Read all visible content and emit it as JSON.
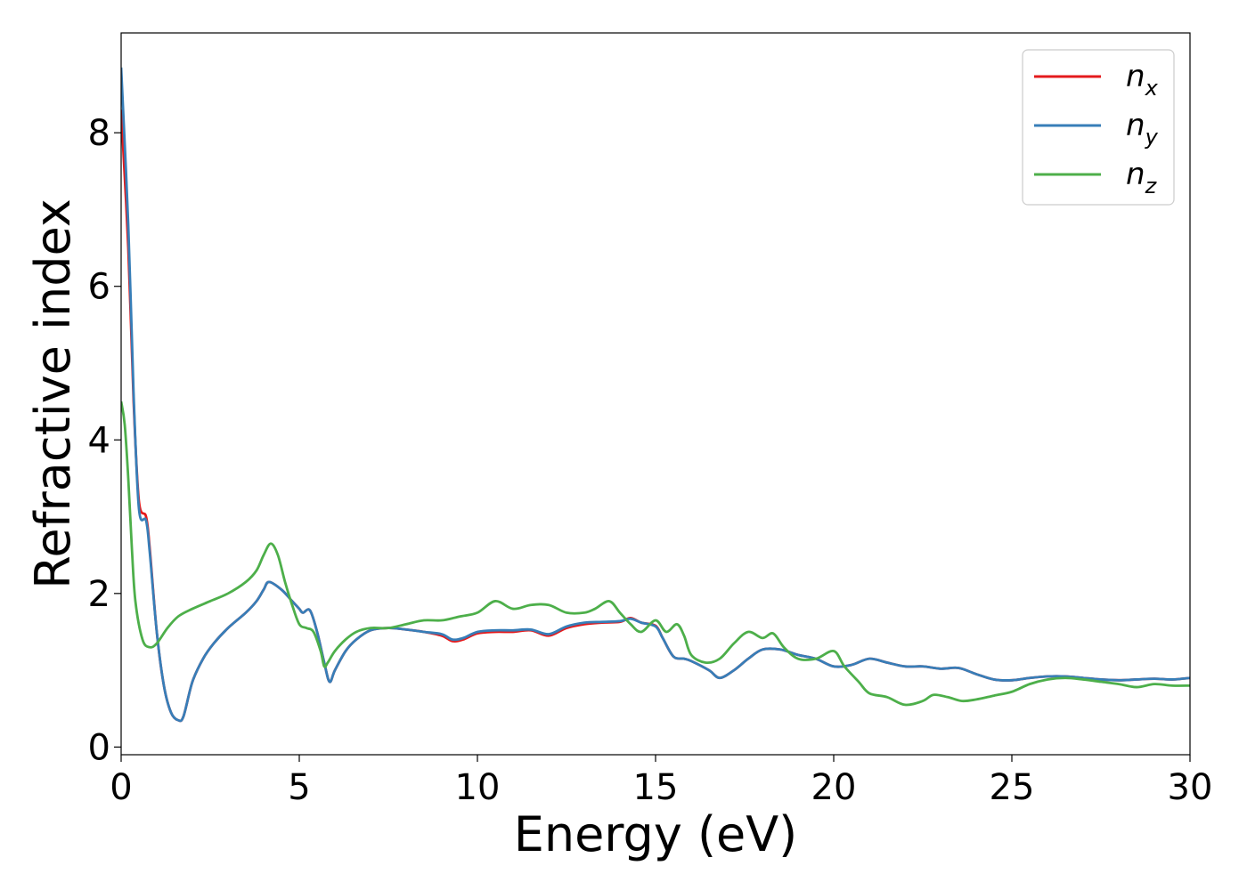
{
  "chart_data": {
    "type": "line",
    "title": "",
    "xlabel": "Energy (eV)",
    "ylabel": "Refractive index",
    "xlim": [
      0,
      30
    ],
    "ylim": [
      -0.1,
      9.3
    ],
    "xticks": [
      0,
      5,
      10,
      15,
      20,
      25,
      30
    ],
    "yticks": [
      0,
      2,
      4,
      6,
      8
    ],
    "grid": false,
    "legend_position": "top-right",
    "series": [
      {
        "name": "n",
        "subscript": "x",
        "color": "#e41a1c",
        "points": [
          [
            0,
            8.3
          ],
          [
            0.2,
            6.5
          ],
          [
            0.35,
            4.5
          ],
          [
            0.5,
            3.2
          ],
          [
            0.7,
            3.0
          ],
          [
            0.8,
            2.6
          ],
          [
            1.0,
            1.5
          ],
          [
            1.2,
            0.8
          ],
          [
            1.4,
            0.45
          ],
          [
            1.6,
            0.35
          ],
          [
            1.75,
            0.4
          ],
          [
            2.0,
            0.85
          ],
          [
            2.3,
            1.15
          ],
          [
            2.6,
            1.35
          ],
          [
            3.0,
            1.55
          ],
          [
            3.5,
            1.75
          ],
          [
            3.8,
            1.9
          ],
          [
            4.0,
            2.05
          ],
          [
            4.15,
            2.15
          ],
          [
            4.5,
            2.05
          ],
          [
            4.8,
            1.9
          ],
          [
            5.0,
            1.8
          ],
          [
            5.1,
            1.75
          ],
          [
            5.3,
            1.78
          ],
          [
            5.5,
            1.5
          ],
          [
            5.7,
            1.1
          ],
          [
            5.85,
            0.85
          ],
          [
            6.0,
            1.0
          ],
          [
            6.3,
            1.25
          ],
          [
            6.6,
            1.4
          ],
          [
            7.0,
            1.52
          ],
          [
            7.5,
            1.55
          ],
          [
            8.0,
            1.53
          ],
          [
            8.5,
            1.5
          ],
          [
            9.0,
            1.45
          ],
          [
            9.3,
            1.38
          ],
          [
            9.6,
            1.4
          ],
          [
            10.0,
            1.48
          ],
          [
            10.5,
            1.5
          ],
          [
            11.0,
            1.5
          ],
          [
            11.5,
            1.52
          ],
          [
            12.0,
            1.45
          ],
          [
            12.5,
            1.55
          ],
          [
            13.0,
            1.6
          ],
          [
            13.5,
            1.62
          ],
          [
            14.0,
            1.63
          ],
          [
            14.3,
            1.68
          ],
          [
            14.6,
            1.62
          ],
          [
            15.0,
            1.58
          ],
          [
            15.2,
            1.42
          ],
          [
            15.5,
            1.18
          ],
          [
            15.8,
            1.15
          ],
          [
            16.0,
            1.12
          ],
          [
            16.5,
            1.0
          ],
          [
            16.8,
            0.9
          ],
          [
            17.2,
            1.0
          ],
          [
            17.6,
            1.15
          ],
          [
            18.0,
            1.27
          ],
          [
            18.5,
            1.27
          ],
          [
            19.0,
            1.2
          ],
          [
            19.5,
            1.15
          ],
          [
            20.0,
            1.05
          ],
          [
            20.5,
            1.07
          ],
          [
            21.0,
            1.15
          ],
          [
            21.5,
            1.1
          ],
          [
            22.0,
            1.05
          ],
          [
            22.5,
            1.05
          ],
          [
            23.0,
            1.02
          ],
          [
            23.5,
            1.03
          ],
          [
            24.0,
            0.95
          ],
          [
            24.5,
            0.88
          ],
          [
            25.0,
            0.87
          ],
          [
            25.5,
            0.9
          ],
          [
            26.0,
            0.92
          ],
          [
            26.5,
            0.92
          ],
          [
            27.0,
            0.9
          ],
          [
            27.5,
            0.88
          ],
          [
            28.0,
            0.87
          ],
          [
            28.5,
            0.88
          ],
          [
            29.0,
            0.89
          ],
          [
            29.5,
            0.88
          ],
          [
            30.0,
            0.9
          ]
        ]
      },
      {
        "name": "n",
        "subscript": "y",
        "color": "#377eb8",
        "points": [
          [
            0,
            8.85
          ],
          [
            0.2,
            6.8
          ],
          [
            0.35,
            4.6
          ],
          [
            0.5,
            3.1
          ],
          [
            0.7,
            2.95
          ],
          [
            0.8,
            2.55
          ],
          [
            1.0,
            1.5
          ],
          [
            1.2,
            0.8
          ],
          [
            1.4,
            0.45
          ],
          [
            1.6,
            0.35
          ],
          [
            1.75,
            0.4
          ],
          [
            2.0,
            0.85
          ],
          [
            2.3,
            1.15
          ],
          [
            2.6,
            1.35
          ],
          [
            3.0,
            1.55
          ],
          [
            3.5,
            1.75
          ],
          [
            3.8,
            1.9
          ],
          [
            4.0,
            2.05
          ],
          [
            4.15,
            2.15
          ],
          [
            4.5,
            2.05
          ],
          [
            4.8,
            1.9
          ],
          [
            5.0,
            1.8
          ],
          [
            5.1,
            1.75
          ],
          [
            5.3,
            1.78
          ],
          [
            5.5,
            1.5
          ],
          [
            5.7,
            1.1
          ],
          [
            5.85,
            0.85
          ],
          [
            6.0,
            1.0
          ],
          [
            6.3,
            1.25
          ],
          [
            6.6,
            1.4
          ],
          [
            7.0,
            1.52
          ],
          [
            7.5,
            1.55
          ],
          [
            8.0,
            1.53
          ],
          [
            8.5,
            1.5
          ],
          [
            9.0,
            1.47
          ],
          [
            9.3,
            1.4
          ],
          [
            9.6,
            1.42
          ],
          [
            10.0,
            1.5
          ],
          [
            10.5,
            1.52
          ],
          [
            11.0,
            1.52
          ],
          [
            11.5,
            1.53
          ],
          [
            12.0,
            1.47
          ],
          [
            12.5,
            1.57
          ],
          [
            13.0,
            1.62
          ],
          [
            13.5,
            1.63
          ],
          [
            14.0,
            1.64
          ],
          [
            14.3,
            1.67
          ],
          [
            14.6,
            1.62
          ],
          [
            15.0,
            1.57
          ],
          [
            15.2,
            1.42
          ],
          [
            15.5,
            1.18
          ],
          [
            15.8,
            1.15
          ],
          [
            16.0,
            1.12
          ],
          [
            16.5,
            1.0
          ],
          [
            16.8,
            0.9
          ],
          [
            17.2,
            1.0
          ],
          [
            17.6,
            1.15
          ],
          [
            18.0,
            1.27
          ],
          [
            18.5,
            1.27
          ],
          [
            19.0,
            1.2
          ],
          [
            19.5,
            1.15
          ],
          [
            20.0,
            1.05
          ],
          [
            20.5,
            1.07
          ],
          [
            21.0,
            1.15
          ],
          [
            21.5,
            1.1
          ],
          [
            22.0,
            1.05
          ],
          [
            22.5,
            1.05
          ],
          [
            23.0,
            1.02
          ],
          [
            23.5,
            1.03
          ],
          [
            24.0,
            0.95
          ],
          [
            24.5,
            0.88
          ],
          [
            25.0,
            0.87
          ],
          [
            25.5,
            0.9
          ],
          [
            26.0,
            0.92
          ],
          [
            26.5,
            0.92
          ],
          [
            27.0,
            0.9
          ],
          [
            27.5,
            0.88
          ],
          [
            28.0,
            0.87
          ],
          [
            28.5,
            0.88
          ],
          [
            29.0,
            0.89
          ],
          [
            29.5,
            0.88
          ],
          [
            30.0,
            0.9
          ]
        ]
      },
      {
        "name": "n",
        "subscript": "z",
        "color": "#4daf4a",
        "points": [
          [
            0,
            4.5
          ],
          [
            0.1,
            4.2
          ],
          [
            0.2,
            3.5
          ],
          [
            0.3,
            2.6
          ],
          [
            0.4,
            1.9
          ],
          [
            0.6,
            1.4
          ],
          [
            0.8,
            1.3
          ],
          [
            1.0,
            1.35
          ],
          [
            1.3,
            1.55
          ],
          [
            1.6,
            1.7
          ],
          [
            2.0,
            1.8
          ],
          [
            2.5,
            1.9
          ],
          [
            3.0,
            2.0
          ],
          [
            3.5,
            2.15
          ],
          [
            3.8,
            2.3
          ],
          [
            4.0,
            2.5
          ],
          [
            4.2,
            2.65
          ],
          [
            4.4,
            2.5
          ],
          [
            4.6,
            2.15
          ],
          [
            4.8,
            1.85
          ],
          [
            5.0,
            1.6
          ],
          [
            5.2,
            1.55
          ],
          [
            5.4,
            1.5
          ],
          [
            5.6,
            1.25
          ],
          [
            5.7,
            1.05
          ],
          [
            5.8,
            1.1
          ],
          [
            6.0,
            1.25
          ],
          [
            6.3,
            1.4
          ],
          [
            6.6,
            1.5
          ],
          [
            7.0,
            1.55
          ],
          [
            7.5,
            1.55
          ],
          [
            8.0,
            1.6
          ],
          [
            8.5,
            1.65
          ],
          [
            9.0,
            1.65
          ],
          [
            9.5,
            1.7
          ],
          [
            10.0,
            1.75
          ],
          [
            10.5,
            1.9
          ],
          [
            11.0,
            1.8
          ],
          [
            11.5,
            1.85
          ],
          [
            12.0,
            1.85
          ],
          [
            12.5,
            1.75
          ],
          [
            13.0,
            1.75
          ],
          [
            13.3,
            1.8
          ],
          [
            13.7,
            1.9
          ],
          [
            14.0,
            1.75
          ],
          [
            14.3,
            1.6
          ],
          [
            14.6,
            1.5
          ],
          [
            15.0,
            1.65
          ],
          [
            15.3,
            1.5
          ],
          [
            15.6,
            1.6
          ],
          [
            15.8,
            1.45
          ],
          [
            16.0,
            1.2
          ],
          [
            16.4,
            1.1
          ],
          [
            16.8,
            1.15
          ],
          [
            17.2,
            1.35
          ],
          [
            17.6,
            1.5
          ],
          [
            18.0,
            1.42
          ],
          [
            18.3,
            1.48
          ],
          [
            18.6,
            1.3
          ],
          [
            19.0,
            1.15
          ],
          [
            19.5,
            1.15
          ],
          [
            20.0,
            1.25
          ],
          [
            20.3,
            1.05
          ],
          [
            20.7,
            0.85
          ],
          [
            21.0,
            0.7
          ],
          [
            21.5,
            0.65
          ],
          [
            22.0,
            0.55
          ],
          [
            22.5,
            0.6
          ],
          [
            22.8,
            0.68
          ],
          [
            23.2,
            0.65
          ],
          [
            23.6,
            0.6
          ],
          [
            24.0,
            0.62
          ],
          [
            24.5,
            0.67
          ],
          [
            25.0,
            0.72
          ],
          [
            25.5,
            0.82
          ],
          [
            26.0,
            0.88
          ],
          [
            26.5,
            0.9
          ],
          [
            27.0,
            0.88
          ],
          [
            27.5,
            0.85
          ],
          [
            28.0,
            0.82
          ],
          [
            28.5,
            0.78
          ],
          [
            29.0,
            0.82
          ],
          [
            29.5,
            0.8
          ],
          [
            30.0,
            0.8
          ]
        ]
      }
    ]
  }
}
